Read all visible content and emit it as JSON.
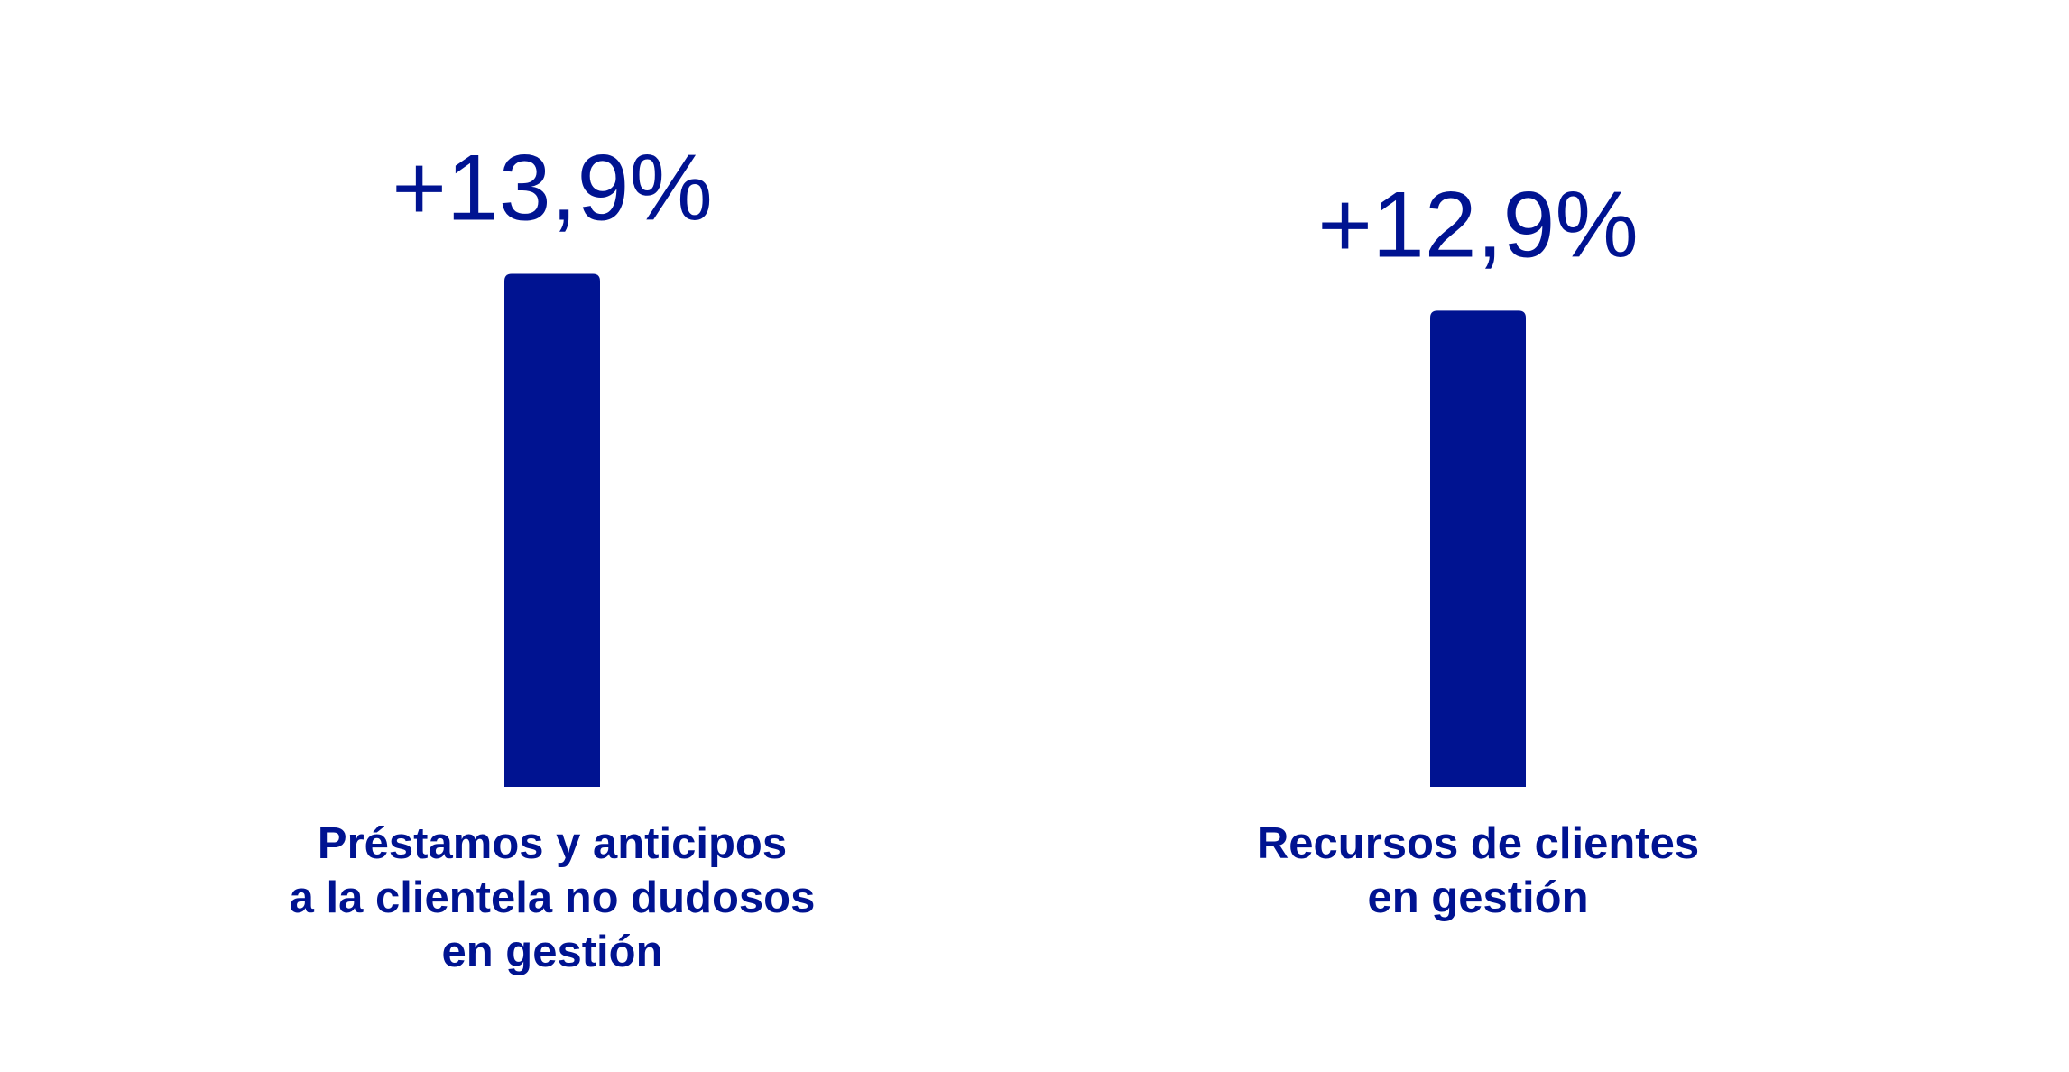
{
  "chart_data": {
    "type": "bar",
    "categories": [
      "Préstamos y anticipos\na la clientela no dudosos\nen gestión",
      "Recursos de clientes\nen gestión"
    ],
    "values": [
      13.9,
      12.9
    ],
    "value_labels": [
      "+13,9%",
      "+12,9%"
    ],
    "color": "#001391"
  }
}
